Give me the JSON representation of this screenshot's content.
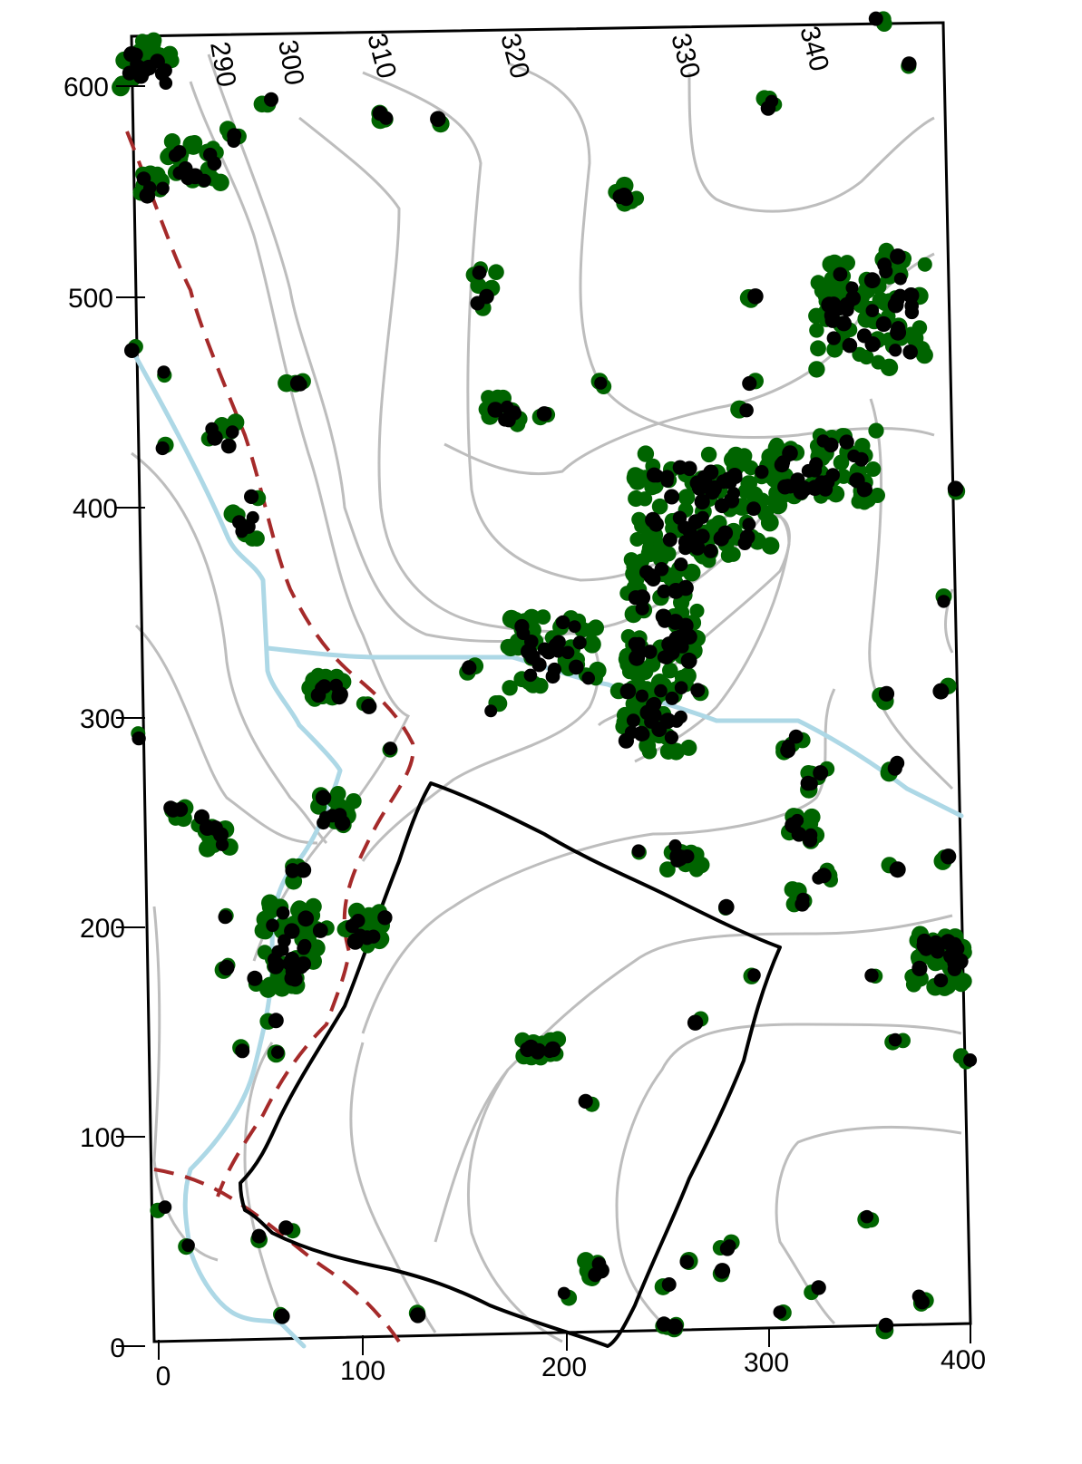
{
  "map": {
    "x_axis": {
      "range": [
        0,
        400
      ],
      "ticks": [
        "0",
        "100",
        "200",
        "300",
        "400"
      ]
    },
    "y_axis": {
      "range": [
        0,
        620
      ],
      "ticks": [
        "0",
        "100",
        "200",
        "300",
        "400",
        "500",
        "600"
      ]
    },
    "contour_labels": [
      "290",
      "300",
      "310",
      "320",
      "330",
      "340"
    ],
    "colors": {
      "contour": "#bdbdbd",
      "stream": "#add8e6",
      "trail": "#a52a2a",
      "plot_boundary": "#000000",
      "tree_canopy": "#006400",
      "tree_stem": "#000000",
      "frame": "#000000"
    },
    "layers": [
      "contour-lines",
      "stream",
      "trail",
      "plot-boundary",
      "tree-canopy",
      "tree-stems"
    ]
  }
}
